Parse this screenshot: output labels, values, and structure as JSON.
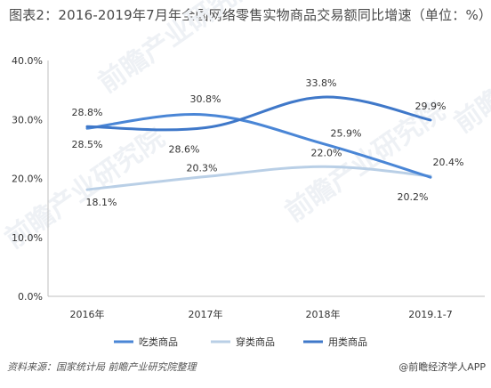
{
  "title": "图表2：2016-2019年7月年全国网络零售实物商品交易额同比增速（单位：%）",
  "source": "资料来源：国家统计局 前瞻产业研究院整理",
  "brand": "@前瞻经济学人APP",
  "watermark": "前瞻产业研究院",
  "chart_data": {
    "type": "line",
    "categories": [
      "2016年",
      "2017年",
      "2018年",
      "2019.1-7"
    ],
    "ylim": [
      0,
      40
    ],
    "yticks": [
      "0.0%",
      "10.0%",
      "20.0%",
      "30.0%",
      "40.0%"
    ],
    "grid": false,
    "legend_position": "bottom",
    "series": [
      {
        "name": "吃类商品",
        "color": "#4a86d6",
        "values": [
          28.5,
          30.8,
          25.9,
          20.2
        ],
        "labels": [
          "28.5%",
          "30.8%",
          "25.9%",
          "20.2%"
        ]
      },
      {
        "name": "穿类商品",
        "color": "#b9cfe6",
        "values": [
          18.1,
          20.3,
          22.0,
          20.4
        ],
        "labels": [
          "18.1%",
          "20.3%",
          "22.0%",
          "20.4%"
        ]
      },
      {
        "name": "用类商品",
        "color": "#3f78c9",
        "values": [
          28.8,
          28.6,
          33.8,
          29.9
        ],
        "labels": [
          "28.8%",
          "28.6%",
          "33.8%",
          "29.9%"
        ]
      }
    ]
  }
}
